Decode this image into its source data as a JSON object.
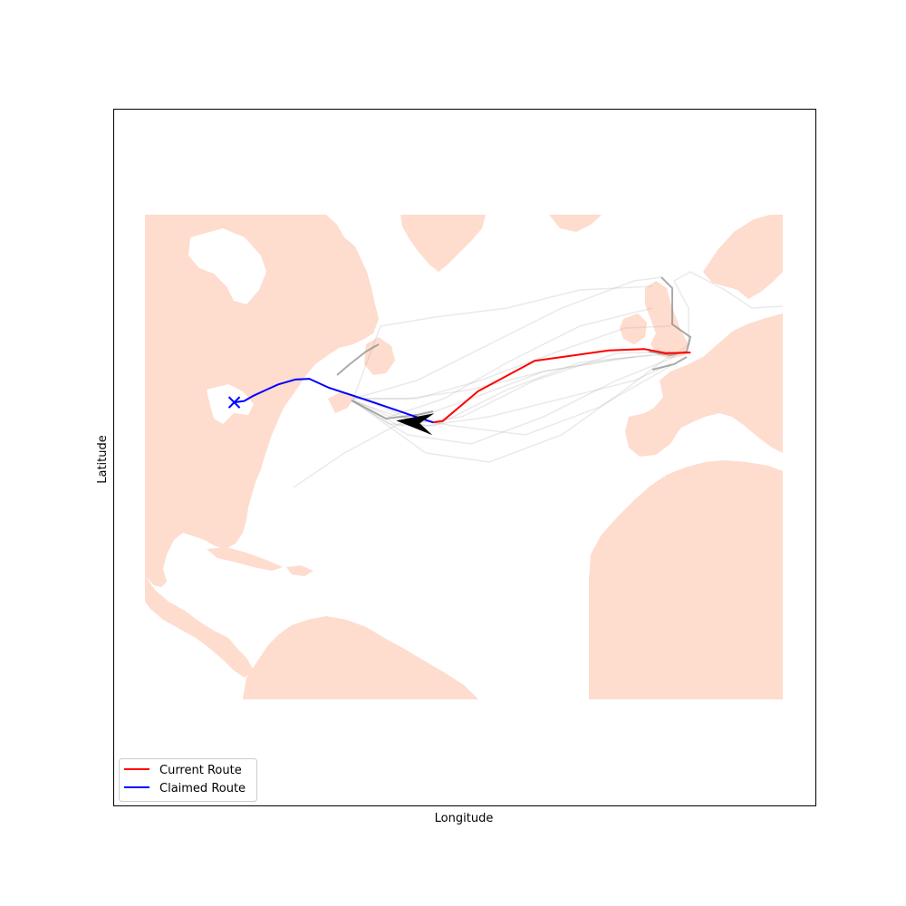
{
  "chart_data": {
    "type": "line",
    "title": "",
    "xlabel": "Longitude",
    "ylabel": "Latitude",
    "land_color": "#fedcce",
    "history_color": "#aaaaaa",
    "series": [
      {
        "name": "Current Route",
        "color": "#ff0000",
        "points": [
          [
            -3.0,
            50.1
          ],
          [
            -6.5,
            50.0
          ],
          [
            -9.5,
            50.6
          ],
          [
            -14.5,
            50.4
          ],
          [
            -25.0,
            48.9
          ],
          [
            -33.0,
            44.5
          ],
          [
            -38.0,
            40.2
          ],
          [
            -39.3,
            40.0
          ]
        ]
      },
      {
        "name": "Claimed Route",
        "color": "#0000ff",
        "points": [
          [
            -39.3,
            40.0
          ],
          [
            -42.0,
            40.9
          ],
          [
            -48.0,
            43.0
          ],
          [
            -54.0,
            45.0
          ],
          [
            -56.8,
            46.3
          ],
          [
            -58.8,
            46.2
          ],
          [
            -61.2,
            45.5
          ],
          [
            -62.7,
            44.8
          ],
          [
            -64.8,
            43.8
          ],
          [
            -66.0,
            43.1
          ],
          [
            -67.4,
            42.9
          ]
        ]
      }
    ],
    "markers": [
      {
        "type": "x",
        "color": "#0000ff",
        "lon": -67.4,
        "lat": 42.9
      },
      {
        "type": "ship-arrow",
        "color": "#000000",
        "lon": -42.0,
        "lat": 40.0,
        "heading_deg": 250
      }
    ],
    "legend": {
      "position": "lower-left",
      "entries": [
        "Current Route",
        "Claimed Route"
      ]
    },
    "xlim": [
      -80,
      10
    ],
    "ylim": [
      0,
      70
    ]
  }
}
